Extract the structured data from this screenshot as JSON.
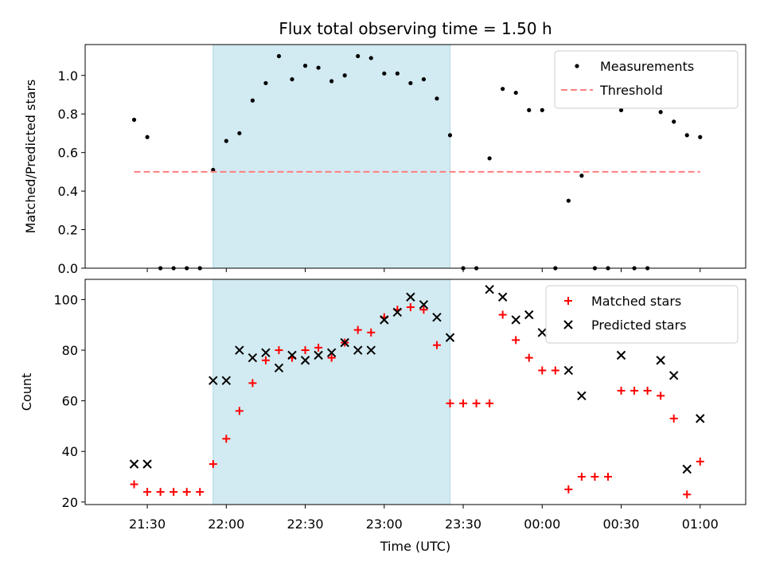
{
  "chart_data": {
    "title": "Flux total observing time = 1.50 h",
    "xlabel": "Time (UTC)",
    "x_ticks": [
      "21:30",
      "22:00",
      "22:30",
      "23:00",
      "23:30",
      "00:00",
      "00:30",
      "01:00"
    ],
    "shaded_interval": {
      "start": "21:55",
      "end": "23:25",
      "color": "#add8e6"
    },
    "panels": [
      {
        "type": "scatter",
        "ylabel": "Matched/Predicted stars",
        "ylim": [
          0,
          1.16
        ],
        "y_ticks": [
          "0.0",
          "0.2",
          "0.4",
          "0.6",
          "0.8",
          "1.0"
        ],
        "legend_position": "top-right",
        "series": [
          {
            "name": "Measurements",
            "marker": "dot",
            "color": "#000000",
            "points": [
              [
                "21:25",
                0.77
              ],
              [
                "21:30",
                0.68
              ],
              [
                "21:35",
                0.0
              ],
              [
                "21:40",
                0.0
              ],
              [
                "21:45",
                0.0
              ],
              [
                "21:50",
                0.0
              ],
              [
                "21:55",
                0.51
              ],
              [
                "22:00",
                0.66
              ],
              [
                "22:05",
                0.7
              ],
              [
                "22:10",
                0.87
              ],
              [
                "22:15",
                0.96
              ],
              [
                "22:20",
                1.1
              ],
              [
                "22:25",
                0.98
              ],
              [
                "22:30",
                1.05
              ],
              [
                "22:35",
                1.04
              ],
              [
                "22:40",
                0.97
              ],
              [
                "22:45",
                1.0
              ],
              [
                "22:50",
                1.1
              ],
              [
                "22:55",
                1.09
              ],
              [
                "23:00",
                1.01
              ],
              [
                "23:05",
                1.01
              ],
              [
                "23:10",
                0.96
              ],
              [
                "23:15",
                0.98
              ],
              [
                "23:20",
                0.88
              ],
              [
                "23:25",
                0.69
              ],
              [
                "23:30",
                0.0
              ],
              [
                "23:35",
                0.0
              ],
              [
                "23:40",
                0.57
              ],
              [
                "23:45",
                0.93
              ],
              [
                "23:50",
                0.91
              ],
              [
                "23:55",
                0.82
              ],
              [
                "00:00",
                0.82
              ],
              [
                "00:05",
                0.0
              ],
              [
                "00:10",
                0.35
              ],
              [
                "00:15",
                0.48
              ],
              [
                "00:20",
                0.0
              ],
              [
                "00:25",
                0.0
              ],
              [
                "00:30",
                0.82
              ],
              [
                "00:35",
                0.0
              ],
              [
                "00:40",
                0.0
              ],
              [
                "00:45",
                0.81
              ],
              [
                "00:50",
                0.76
              ],
              [
                "00:55",
                0.69
              ],
              [
                "01:00",
                0.68
              ]
            ]
          },
          {
            "name": "Threshold",
            "marker": "dashed-line",
            "color": "#ff7f7f",
            "points": [
              [
                "21:25",
                0.5
              ],
              [
                "01:00",
                0.5
              ]
            ]
          }
        ]
      },
      {
        "type": "scatter",
        "ylabel": "Count",
        "ylim": [
          19,
          108
        ],
        "y_ticks": [
          "20",
          "40",
          "60",
          "80",
          "100"
        ],
        "legend_position": "top-right",
        "series": [
          {
            "name": "Matched stars",
            "marker": "plus",
            "color": "#ff0000",
            "points": [
              [
                "21:25",
                27
              ],
              [
                "21:30",
                24
              ],
              [
                "21:35",
                24
              ],
              [
                "21:40",
                24
              ],
              [
                "21:45",
                24
              ],
              [
                "21:50",
                24
              ],
              [
                "21:55",
                35
              ],
              [
                "22:00",
                45
              ],
              [
                "22:05",
                56
              ],
              [
                "22:10",
                67
              ],
              [
                "22:15",
                76
              ],
              [
                "22:20",
                80
              ],
              [
                "22:25",
                77
              ],
              [
                "22:30",
                80
              ],
              [
                "22:35",
                81
              ],
              [
                "22:40",
                77
              ],
              [
                "22:45",
                83
              ],
              [
                "22:50",
                88
              ],
              [
                "22:55",
                87
              ],
              [
                "23:00",
                93
              ],
              [
                "23:05",
                96
              ],
              [
                "23:10",
                97
              ],
              [
                "23:15",
                96
              ],
              [
                "23:20",
                82
              ],
              [
                "23:25",
                59
              ],
              [
                "23:30",
                59
              ],
              [
                "23:35",
                59
              ],
              [
                "23:40",
                59
              ],
              [
                "23:45",
                94
              ],
              [
                "23:50",
                84
              ],
              [
                "23:55",
                77
              ],
              [
                "00:00",
                72
              ],
              [
                "00:05",
                72
              ],
              [
                "00:10",
                25
              ],
              [
                "00:15",
                30
              ],
              [
                "00:20",
                30
              ],
              [
                "00:25",
                30
              ],
              [
                "00:30",
                64
              ],
              [
                "00:35",
                64
              ],
              [
                "00:40",
                64
              ],
              [
                "00:45",
                62
              ],
              [
                "00:50",
                53
              ],
              [
                "00:55",
                23
              ],
              [
                "01:00",
                36
              ]
            ]
          },
          {
            "name": "Predicted stars",
            "marker": "x",
            "color": "#000000",
            "points": [
              [
                "21:25",
                35
              ],
              [
                "21:30",
                35
              ],
              [
                "21:55",
                68
              ],
              [
                "22:00",
                68
              ],
              [
                "22:05",
                80
              ],
              [
                "22:10",
                77
              ],
              [
                "22:15",
                79
              ],
              [
                "22:20",
                73
              ],
              [
                "22:25",
                78
              ],
              [
                "22:30",
                76
              ],
              [
                "22:35",
                78
              ],
              [
                "22:40",
                79
              ],
              [
                "22:45",
                83
              ],
              [
                "22:50",
                80
              ],
              [
                "22:55",
                80
              ],
              [
                "23:00",
                92
              ],
              [
                "23:05",
                95
              ],
              [
                "23:10",
                101
              ],
              [
                "23:15",
                98
              ],
              [
                "23:20",
                93
              ],
              [
                "23:25",
                85
              ],
              [
                "23:40",
                104
              ],
              [
                "23:45",
                101
              ],
              [
                "23:50",
                92
              ],
              [
                "23:55",
                94
              ],
              [
                "00:00",
                87
              ],
              [
                "00:10",
                72
              ],
              [
                "00:15",
                62
              ],
              [
                "00:30",
                78
              ],
              [
                "00:45",
                76
              ],
              [
                "00:50",
                70
              ],
              [
                "00:55",
                33
              ],
              [
                "01:00",
                53
              ]
            ]
          }
        ]
      }
    ]
  }
}
